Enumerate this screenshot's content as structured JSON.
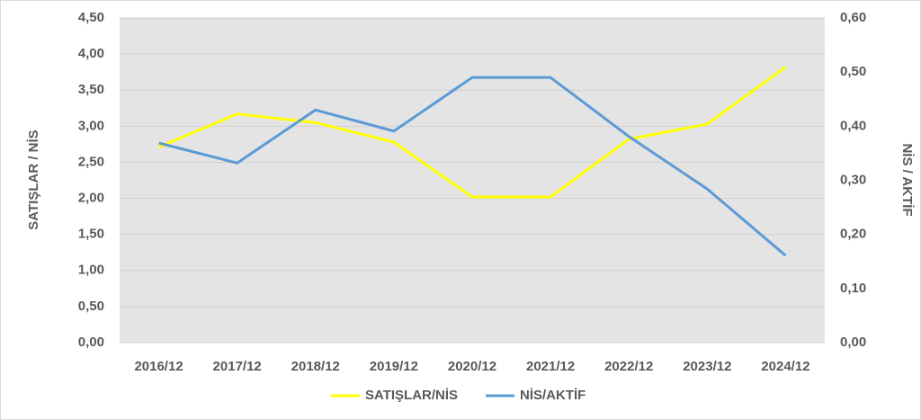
{
  "chart_data": {
    "type": "line",
    "categories": [
      "2016/12",
      "2017/12",
      "2018/12",
      "2019/12",
      "2020/12",
      "2021/12",
      "2022/12",
      "2023/12",
      "2024/12"
    ],
    "series": [
      {
        "name": "SATIŞLAR/NİS",
        "color": "#ffff00",
        "values": [
          2.71,
          3.17,
          3.05,
          2.78,
          2.02,
          2.02,
          2.82,
          3.03,
          3.82
        ]
      },
      {
        "name": "NİS/AKTİF",
        "color": "#5b9bd5",
        "axis": "y2",
        "values": [
          0.369,
          0.332,
          0.43,
          0.391,
          0.49,
          0.49,
          0.381,
          0.284,
          0.161
        ]
      }
    ],
    "ylabel": "SATIŞLAR / NİS",
    "y2label": "NİS / AKTİF",
    "ylim": [
      0,
      4.5
    ],
    "yticks": [
      {
        "value": 0,
        "label": "0,00"
      },
      {
        "value": 0.5,
        "label": "0,50"
      },
      {
        "value": 1,
        "label": "1,00"
      },
      {
        "value": 1.5,
        "label": "1,50"
      },
      {
        "value": 2,
        "label": "2,00"
      },
      {
        "value": 2.5,
        "label": "2,50"
      },
      {
        "value": 3,
        "label": "3,00"
      },
      {
        "value": 3.5,
        "label": "3,50"
      },
      {
        "value": 4,
        "label": "4,00"
      },
      {
        "value": 4.5,
        "label": "4,50"
      }
    ],
    "y2lim": [
      0,
      0.6
    ],
    "y2ticks": [
      {
        "value": 0,
        "label": "0,00"
      },
      {
        "value": 0.1,
        "label": "0,10"
      },
      {
        "value": 0.2,
        "label": "0,20"
      },
      {
        "value": 0.3,
        "label": "0,30"
      },
      {
        "value": 0.4,
        "label": "0,40"
      },
      {
        "value": 0.5,
        "label": "0,50"
      },
      {
        "value": 0.6,
        "label": "0,60"
      }
    ],
    "grid": true,
    "legend": "bottom"
  }
}
